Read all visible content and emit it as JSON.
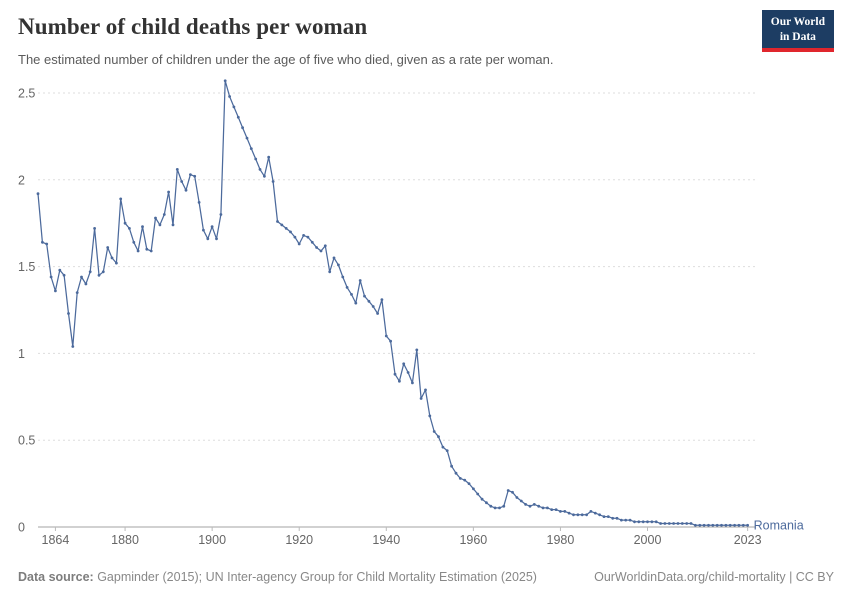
{
  "header": {
    "title": "Number of child deaths per woman",
    "subtitle": "The estimated number of children under the age of five who died, given as a rate per woman.",
    "logo": {
      "line1": "Our World",
      "line2": "in Data",
      "bg_color": "#1d3d63",
      "accent_color": "#e0262d"
    }
  },
  "footer": {
    "source_label": "Data source:",
    "source_text": " Gapminder (2015); UN Inter-agency Group for Child Mortality Estimation (2025)",
    "link": "OurWorldinData.org/child-mortality | CC BY"
  },
  "chart_data": {
    "type": "line",
    "title": "Number of child deaths per woman",
    "xlabel": "",
    "ylabel": "",
    "xlim": [
      1860,
      2024
    ],
    "ylim": [
      0,
      2.5
    ],
    "x_ticks": [
      1864,
      1880,
      1900,
      1920,
      1940,
      1960,
      1980,
      2000,
      2023
    ],
    "y_ticks": [
      0,
      0.5,
      1,
      1.5,
      2,
      2.5
    ],
    "grid": true,
    "line_color": "#4c6a9c",
    "grid_color": "#dddddd",
    "zero_line_color": "#a3a3a3",
    "tick_label_color": "#666666",
    "legend_position": "end-of-line-label",
    "series": [
      {
        "name": "Romania",
        "x": [
          1860,
          1861,
          1862,
          1863,
          1864,
          1865,
          1866,
          1867,
          1868,
          1869,
          1870,
          1871,
          1872,
          1873,
          1874,
          1875,
          1876,
          1877,
          1878,
          1879,
          1880,
          1881,
          1882,
          1883,
          1884,
          1885,
          1886,
          1887,
          1888,
          1889,
          1890,
          1891,
          1892,
          1893,
          1894,
          1895,
          1896,
          1897,
          1898,
          1899,
          1900,
          1901,
          1902,
          1903,
          1904,
          1905,
          1906,
          1907,
          1908,
          1909,
          1910,
          1911,
          1912,
          1913,
          1914,
          1915,
          1916,
          1917,
          1918,
          1919,
          1920,
          1921,
          1922,
          1923,
          1924,
          1925,
          1926,
          1927,
          1928,
          1929,
          1930,
          1931,
          1932,
          1933,
          1934,
          1935,
          1936,
          1937,
          1938,
          1939,
          1940,
          1941,
          1942,
          1943,
          1944,
          1945,
          1946,
          1947,
          1948,
          1949,
          1950,
          1951,
          1952,
          1953,
          1954,
          1955,
          1956,
          1957,
          1958,
          1959,
          1960,
          1961,
          1962,
          1963,
          1964,
          1965,
          1966,
          1967,
          1968,
          1969,
          1970,
          1971,
          1972,
          1973,
          1974,
          1975,
          1976,
          1977,
          1978,
          1979,
          1980,
          1981,
          1982,
          1983,
          1984,
          1985,
          1986,
          1987,
          1988,
          1989,
          1990,
          1991,
          1992,
          1993,
          1994,
          1995,
          1996,
          1997,
          1998,
          1999,
          2000,
          2001,
          2002,
          2003,
          2004,
          2005,
          2006,
          2007,
          2008,
          2009,
          2010,
          2011,
          2012,
          2013,
          2014,
          2015,
          2016,
          2017,
          2018,
          2019,
          2020,
          2021,
          2022,
          2023
        ],
        "values": [
          1.92,
          1.64,
          1.63,
          1.44,
          1.36,
          1.48,
          1.45,
          1.23,
          1.04,
          1.35,
          1.44,
          1.4,
          1.47,
          1.72,
          1.45,
          1.47,
          1.61,
          1.55,
          1.52,
          1.89,
          1.75,
          1.72,
          1.64,
          1.59,
          1.73,
          1.6,
          1.59,
          1.78,
          1.74,
          1.8,
          1.93,
          1.74,
          2.06,
          1.99,
          1.94,
          2.03,
          2.02,
          1.87,
          1.71,
          1.66,
          1.73,
          1.66,
          1.8,
          2.57,
          2.48,
          2.42,
          2.36,
          2.3,
          2.24,
          2.18,
          2.12,
          2.06,
          2.02,
          2.13,
          1.99,
          1.76,
          1.74,
          1.72,
          1.7,
          1.67,
          1.63,
          1.68,
          1.67,
          1.64,
          1.61,
          1.59,
          1.62,
          1.47,
          1.55,
          1.51,
          1.44,
          1.38,
          1.34,
          1.29,
          1.42,
          1.33,
          1.3,
          1.27,
          1.23,
          1.31,
          1.1,
          1.07,
          0.88,
          0.84,
          0.94,
          0.89,
          0.83,
          1.02,
          0.74,
          0.79,
          0.64,
          0.55,
          0.52,
          0.46,
          0.44,
          0.35,
          0.31,
          0.28,
          0.27,
          0.25,
          0.22,
          0.19,
          0.16,
          0.14,
          0.12,
          0.11,
          0.11,
          0.12,
          0.21,
          0.2,
          0.17,
          0.15,
          0.13,
          0.12,
          0.13,
          0.12,
          0.11,
          0.11,
          0.1,
          0.1,
          0.09,
          0.09,
          0.08,
          0.07,
          0.07,
          0.07,
          0.07,
          0.09,
          0.08,
          0.07,
          0.06,
          0.06,
          0.05,
          0.05,
          0.04,
          0.04,
          0.04,
          0.03,
          0.03,
          0.03,
          0.03,
          0.03,
          0.03,
          0.02,
          0.02,
          0.02,
          0.02,
          0.02,
          0.02,
          0.02,
          0.02,
          0.01,
          0.01,
          0.01,
          0.01,
          0.01,
          0.01,
          0.01,
          0.01,
          0.01,
          0.01,
          0.01,
          0.01,
          0.01
        ]
      }
    ]
  }
}
